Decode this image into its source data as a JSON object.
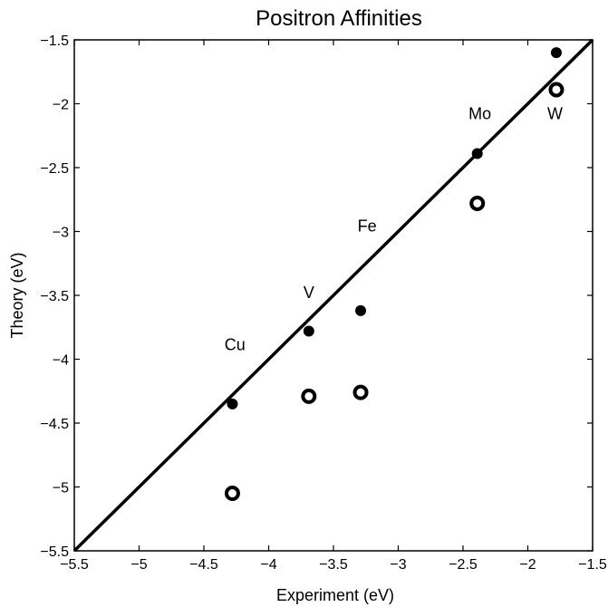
{
  "chart_data": {
    "type": "scatter",
    "title": "Positron Affinities",
    "xlabel": "Experiment (eV)",
    "ylabel": "Theory (eV)",
    "xlim": [
      -5.5,
      -1.5
    ],
    "ylim": [
      -5.5,
      -1.5
    ],
    "x_ticks": [
      -5.5,
      -5,
      -4.5,
      -4,
      -3.5,
      -3,
      -2.5,
      -2,
      -1.5
    ],
    "y_ticks": [
      -5.5,
      -5,
      -4.5,
      -4,
      -3.5,
      -3,
      -2.5,
      -2,
      -1.5
    ],
    "x_tick_labels": [
      "−5.5",
      "−5",
      "−4.5",
      "−4",
      "−3.5",
      "−3",
      "−2.5",
      "−2",
      "−1.5"
    ],
    "y_tick_labels": [
      "−5.5",
      "−5",
      "−4.5",
      "−4",
      "−3.5",
      "−3",
      "−2.5",
      "−2",
      "−1.5"
    ],
    "grid": false,
    "series": [
      {
        "marker": "filled-circle",
        "color": "#000000",
        "points": [
          {
            "x": -4.28,
            "y": -4.35
          },
          {
            "x": -3.69,
            "y": -3.78
          },
          {
            "x": -3.29,
            "y": -3.62
          },
          {
            "x": -2.39,
            "y": -2.39
          },
          {
            "x": -1.78,
            "y": -1.6
          }
        ]
      },
      {
        "marker": "open-circle",
        "color": "#000000",
        "points": [
          {
            "x": -4.28,
            "y": -5.05
          },
          {
            "x": -3.69,
            "y": -4.29
          },
          {
            "x": -3.29,
            "y": -4.26
          },
          {
            "x": -2.39,
            "y": -2.78
          },
          {
            "x": -1.78,
            "y": -1.89
          }
        ]
      }
    ],
    "reference_line": {
      "from": [
        -5.5,
        -5.5
      ],
      "to": [
        -1.5,
        -1.5
      ],
      "color": "#000000"
    },
    "annotations": [
      {
        "text": "Cu",
        "x": -4.26,
        "y": -3.93
      },
      {
        "text": "V",
        "x": -3.69,
        "y": -3.52
      },
      {
        "text": "Fe",
        "x": -3.24,
        "y": -3.0
      },
      {
        "text": "Mo",
        "x": -2.37,
        "y": -2.12
      },
      {
        "text": "W",
        "x": -1.79,
        "y": -2.12
      }
    ]
  }
}
